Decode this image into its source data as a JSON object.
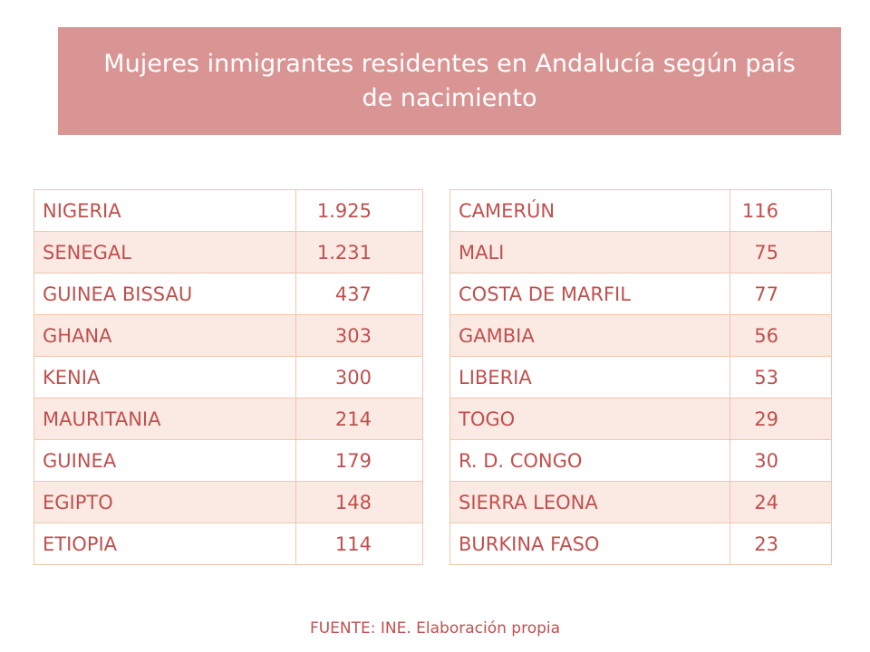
{
  "title": "Mujeres inmigrantes residentes en Andalucía según país de nacimiento",
  "colors": {
    "banner": "#d99594",
    "text": "#c0504d",
    "row_alt": "#fbeae4",
    "border": "#f2c5b0"
  },
  "left_table": [
    {
      "country": "NIGERIA",
      "value": "1.925"
    },
    {
      "country": "SENEGAL",
      "value": "1.231"
    },
    {
      "country": "GUINEA BISSAU",
      "value": "437"
    },
    {
      "country": "GHANA",
      "value": "303"
    },
    {
      "country": "KENIA",
      "value": "300"
    },
    {
      "country": "MAURITANIA",
      "value": "214"
    },
    {
      "country": "GUINEA",
      "value": "179"
    },
    {
      "country": "EGIPTO",
      "value": "148"
    },
    {
      "country": "ETIOPIA",
      "value": "114"
    }
  ],
  "right_table": [
    {
      "country": "CAMERÚN",
      "value": "116"
    },
    {
      "country": "MALI",
      "value": "75"
    },
    {
      "country": "COSTA DE MARFIL",
      "value": "77"
    },
    {
      "country": "GAMBIA",
      "value": "56"
    },
    {
      "country": "LIBERIA",
      "value": "53"
    },
    {
      "country": "TOGO",
      "value": "29"
    },
    {
      "country": "R. D. CONGO",
      "value": "30"
    },
    {
      "country": "SIERRA LEONA",
      "value": "24"
    },
    {
      "country": "BURKINA FASO",
      "value": "23"
    }
  ],
  "source": "FUENTE: INE. Elaboración propia"
}
